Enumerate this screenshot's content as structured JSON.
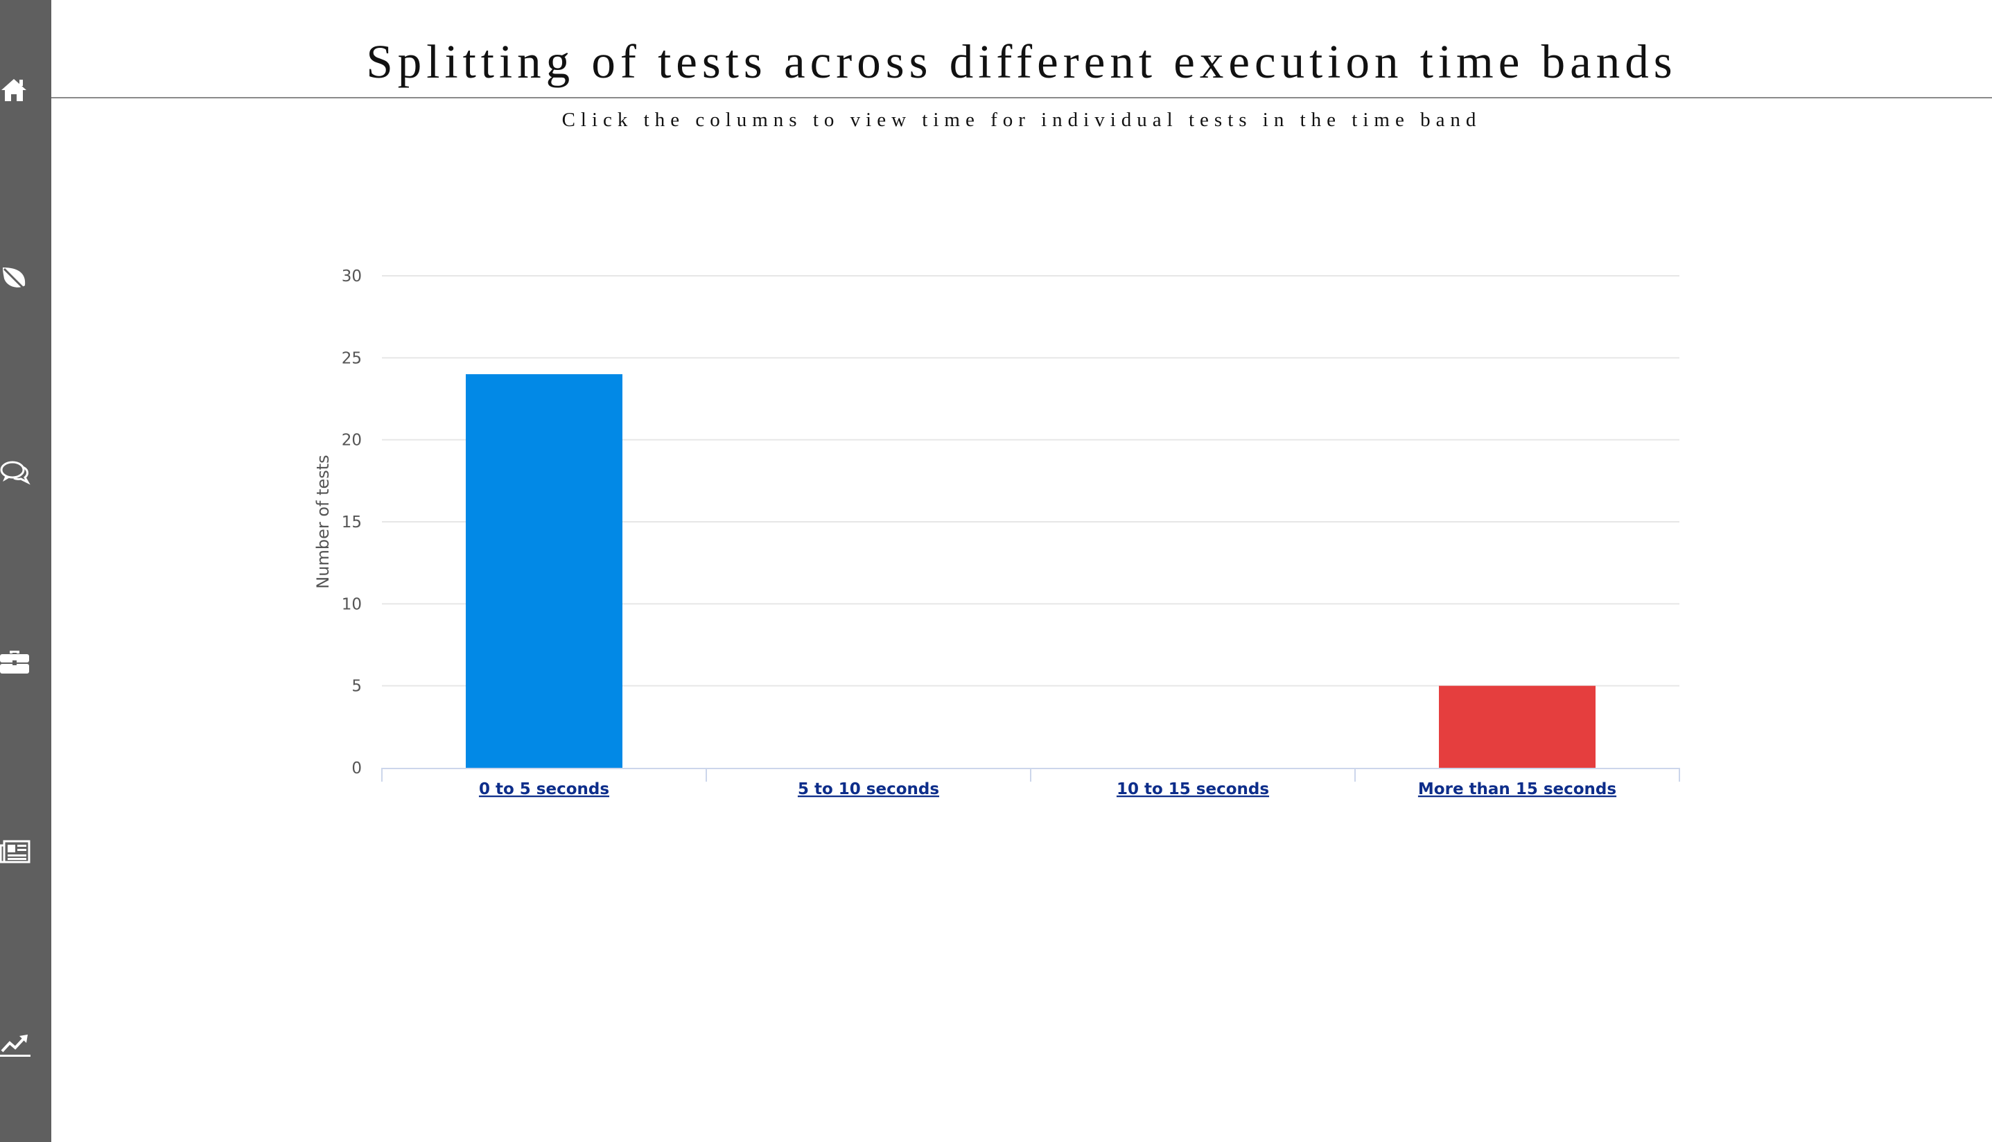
{
  "sidebar": {
    "items": [
      {
        "name": "home",
        "icon": "home-icon"
      },
      {
        "name": "leaf",
        "icon": "leaf-icon"
      },
      {
        "name": "chat",
        "icon": "chat-icon"
      },
      {
        "name": "briefcase",
        "icon": "briefcase-icon"
      },
      {
        "name": "newspaper",
        "icon": "newspaper-icon"
      },
      {
        "name": "trend",
        "icon": "trend-chart-icon"
      }
    ]
  },
  "header": {
    "title": "Splitting of tests across different execution time bands",
    "subtitle": "Click the columns to view time for individual tests in the time band"
  },
  "chart_data": {
    "type": "bar",
    "title": "Splitting of tests across different execution time bands",
    "subtitle": "Click the columns to view time for individual tests in the time band",
    "categories": [
      "0 to 5 seconds",
      "5 to 10 seconds",
      "10 to 15 seconds",
      "More than 15 seconds"
    ],
    "values": [
      24,
      0,
      0,
      5
    ],
    "colors": [
      "#0289e6",
      "#0289e6",
      "#0289e6",
      "#e53e3e"
    ],
    "xlabel": "",
    "ylabel": "Number of tests",
    "ylim": [
      0,
      30
    ],
    "yticks": [
      0,
      5,
      10,
      15,
      20,
      25,
      30
    ],
    "grid": true,
    "gridColor": "#e6e6e6",
    "axisColor": "#ccd6eb",
    "legend": "none"
  }
}
